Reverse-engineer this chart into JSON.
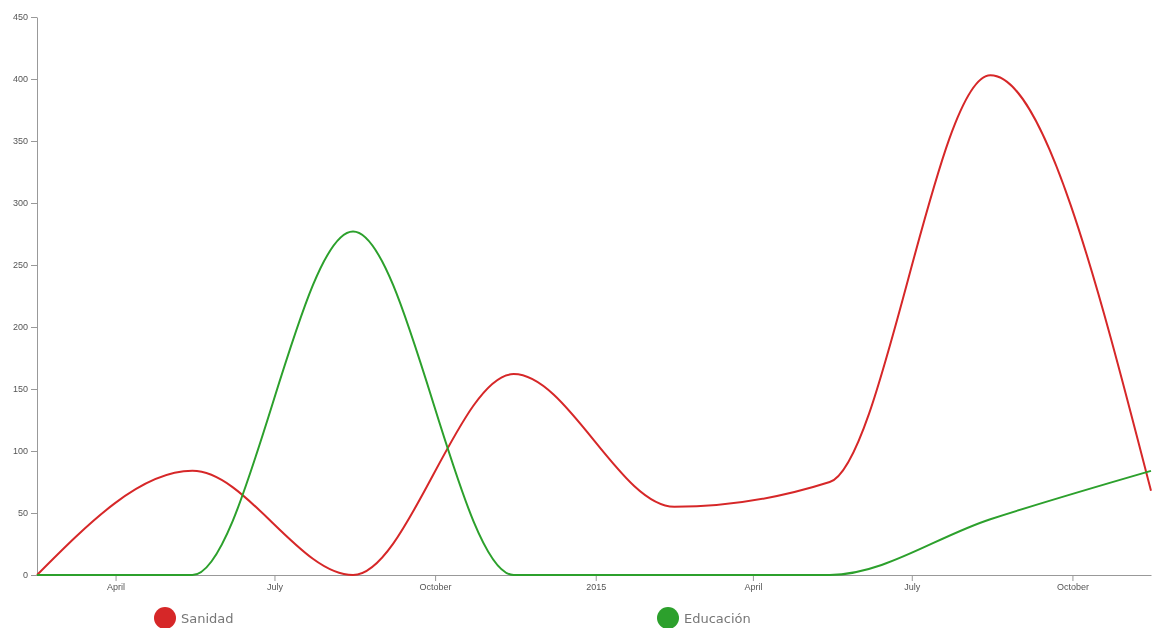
{
  "chart_data": {
    "type": "line",
    "x": [
      "2014-02-15",
      "2014-05-15",
      "2014-08-15",
      "2014-11-15",
      "2015-02-15",
      "2015-05-15",
      "2015-08-15",
      "2015-11-15"
    ],
    "series": [
      {
        "name": "Sanidad",
        "color": "#d62728",
        "values": [
          0,
          84,
          0,
          162,
          55,
          75,
          403,
          68
        ]
      },
      {
        "name": "Educación",
        "color": "#2ca02c",
        "values": [
          0,
          0,
          277,
          0,
          0,
          0,
          45,
          84
        ]
      }
    ],
    "xlim": [
      "2014-02-15",
      "2015-11-15"
    ],
    "xticks": [
      {
        "value": "2014-04-01",
        "label": "April"
      },
      {
        "value": "2014-07-01",
        "label": "July"
      },
      {
        "value": "2014-10-01",
        "label": "October"
      },
      {
        "value": "2015-01-01",
        "label": "2015"
      },
      {
        "value": "2015-04-01",
        "label": "April"
      },
      {
        "value": "2015-07-01",
        "label": "July"
      },
      {
        "value": "2015-10-01",
        "label": "October"
      }
    ],
    "ylim": [
      0,
      450
    ],
    "yticks": [
      0,
      50,
      100,
      150,
      200,
      250,
      300,
      350,
      400,
      450
    ],
    "grid": false,
    "legend": "bottom",
    "marker": "none",
    "line_style": "solid"
  }
}
